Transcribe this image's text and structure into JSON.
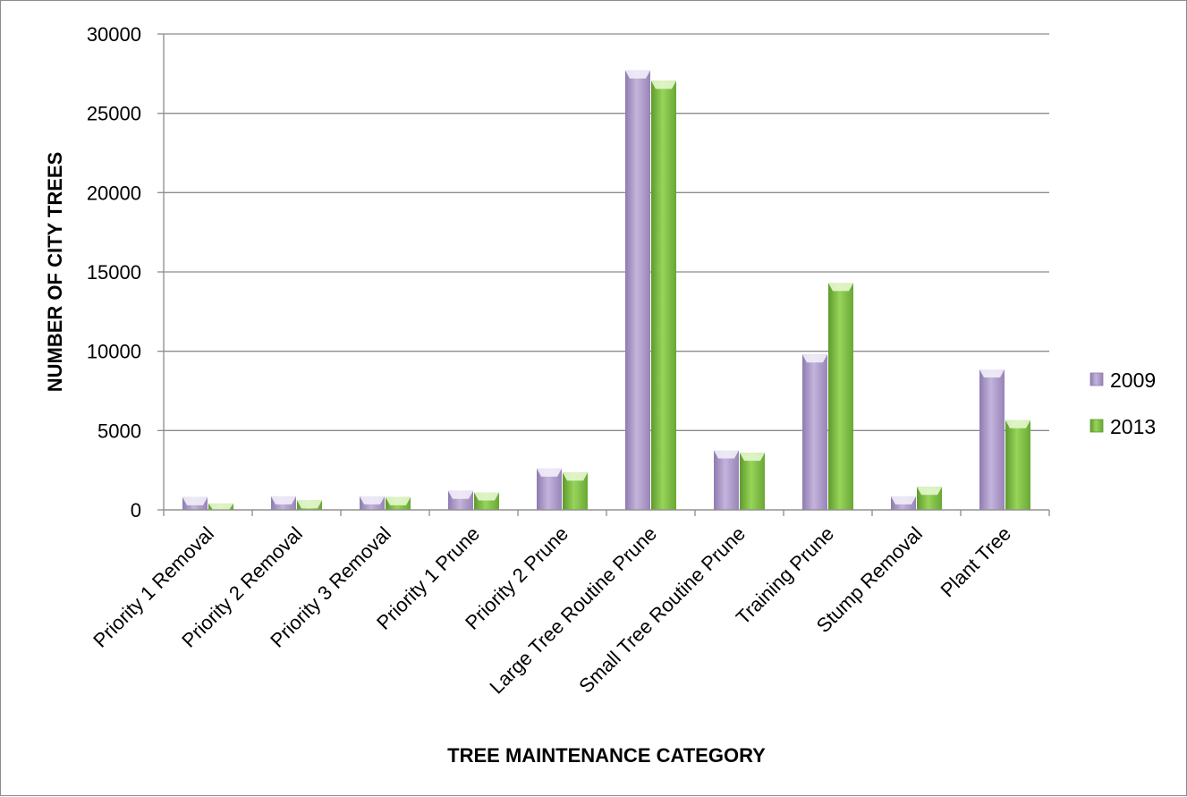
{
  "chart_data": {
    "type": "bar",
    "title": "",
    "xlabel": "TREE MAINTENANCE CATEGORY",
    "ylabel": "NUMBER OF CITY TREES",
    "ylim": [
      0,
      30000
    ],
    "yticks": [
      0,
      5000,
      10000,
      15000,
      20000,
      25000,
      30000
    ],
    "grid": true,
    "legend_position": "right",
    "categories": [
      "Priority 1 Removal",
      "Priority 2 Removal",
      "Priority 3 Removal",
      "Priority 1 Prune",
      "Priority 2 Prune",
      "Large Tree Routine Prune",
      "Small Tree Routine Prune",
      "Training Prune",
      "Stump Removal",
      "Plant Tree"
    ],
    "series": [
      {
        "name": "2009",
        "color": "#b9a6d2",
        "values": [
          800,
          850,
          850,
          1200,
          2600,
          27700,
          3750,
          9800,
          850,
          8850
        ]
      },
      {
        "name": "2013",
        "color": "#8bc34a",
        "values": [
          400,
          600,
          800,
          1100,
          2350,
          27050,
          3600,
          14300,
          1450,
          5650
        ]
      }
    ]
  }
}
